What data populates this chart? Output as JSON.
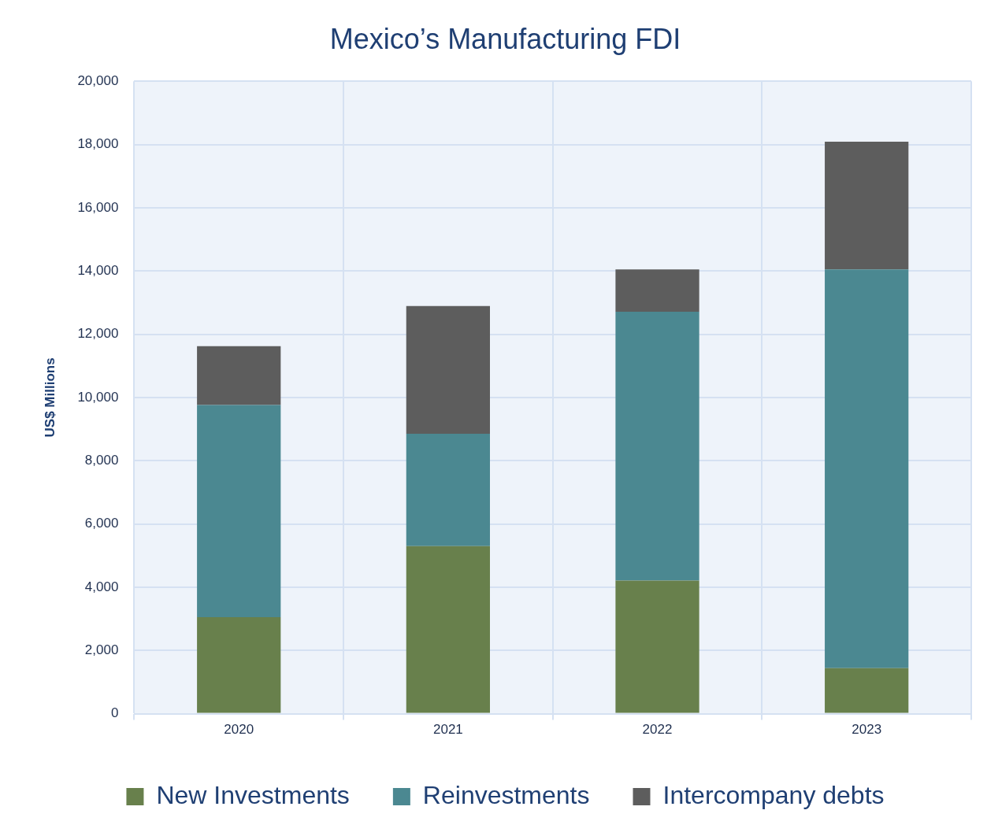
{
  "chart_data": {
    "type": "bar",
    "title": "Mexico’s Manufacturing FDI",
    "ylabel": "US$ Millions",
    "categories": [
      "2020",
      "2021",
      "2022",
      "2023"
    ],
    "stacked": true,
    "series": [
      {
        "name": "New Investments",
        "color": "#68804c",
        "values": [
          3050,
          5300,
          4210,
          1440
        ]
      },
      {
        "name": "Reinvestments",
        "color": "#4b8891",
        "values": [
          6710,
          3550,
          8500,
          12610
        ]
      },
      {
        "name": "Intercompany debts",
        "color": "#5d5d5d",
        "values": [
          1860,
          4040,
          1340,
          4040
        ]
      }
    ],
    "ylim": [
      0,
      20000
    ],
    "yticks": [
      {
        "value": 0,
        "label": "0"
      },
      {
        "value": 2000,
        "label": "2,000"
      },
      {
        "value": 4000,
        "label": "4,000"
      },
      {
        "value": 6000,
        "label": "6,000"
      },
      {
        "value": 8000,
        "label": "8,000"
      },
      {
        "value": 10000,
        "label": "10,000"
      },
      {
        "value": 12000,
        "label": "12,000"
      },
      {
        "value": 14000,
        "label": "14,000"
      },
      {
        "value": 16000,
        "label": "16,000"
      },
      {
        "value": 18000,
        "label": "18,000"
      },
      {
        "value": 20000,
        "label": "20,000"
      }
    ],
    "grid": true,
    "legend": "bottom"
  }
}
